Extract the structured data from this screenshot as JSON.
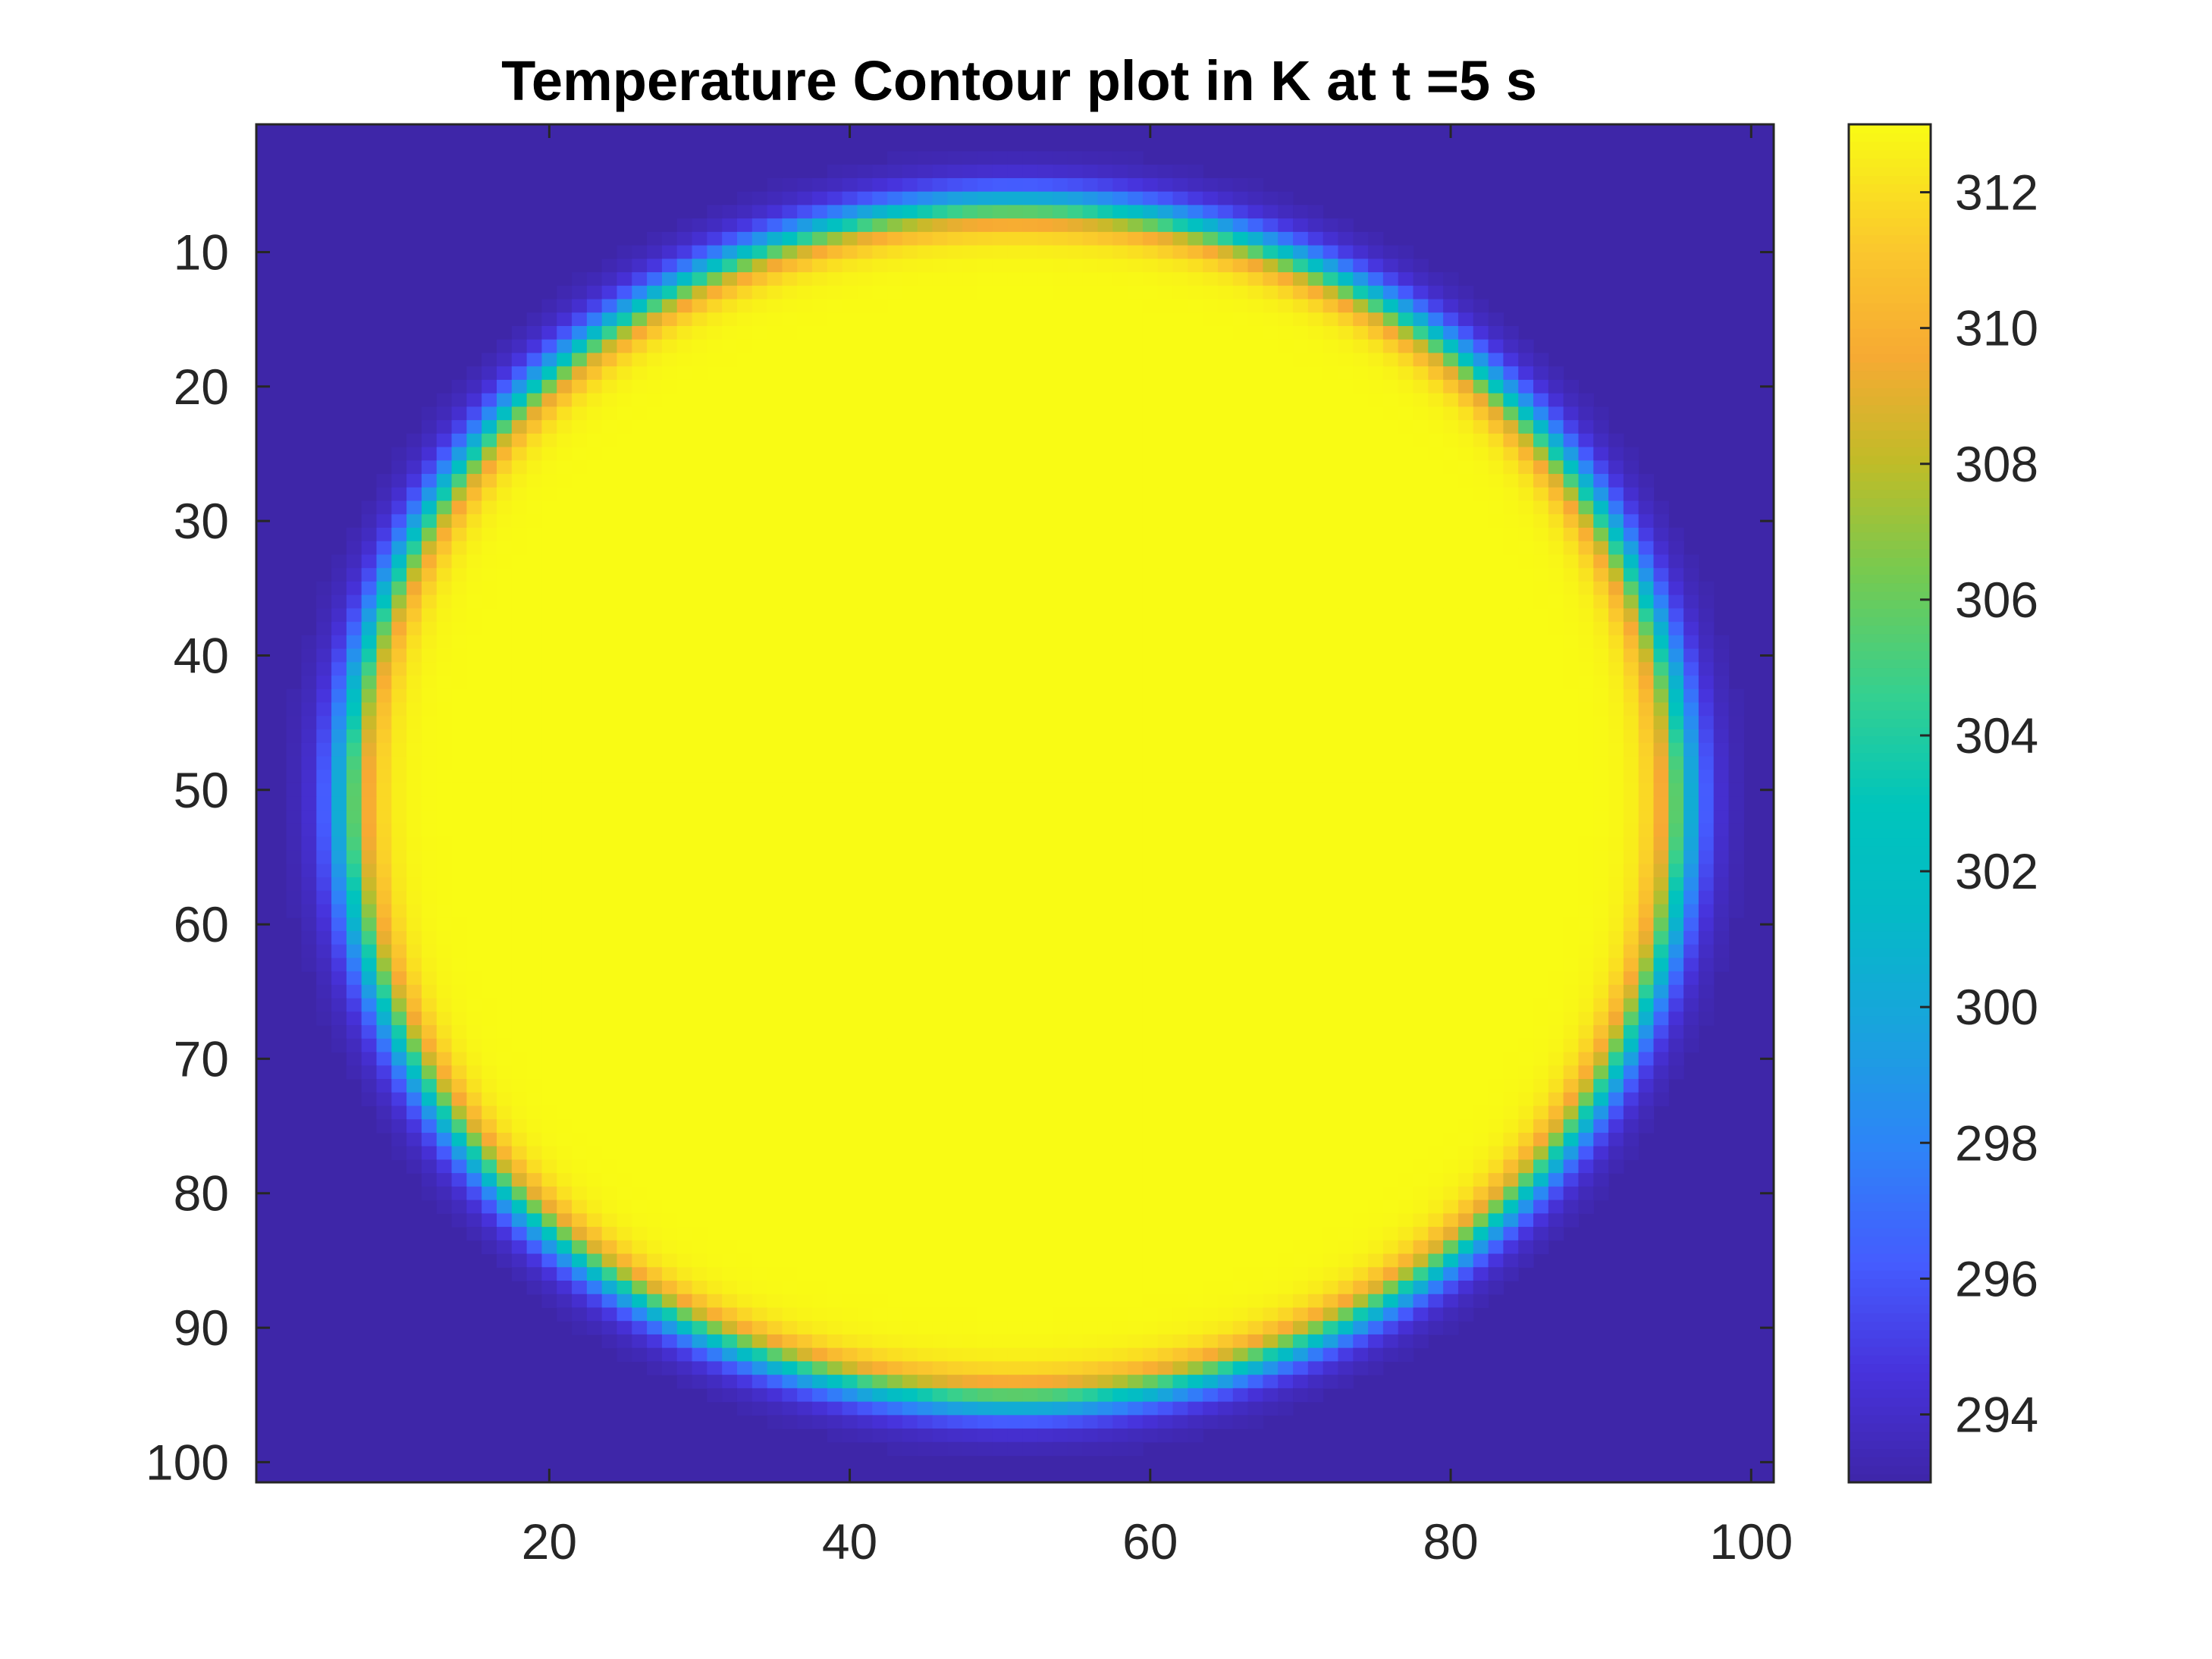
{
  "chart_data": {
    "type": "heatmap",
    "title": "Temperature Contour plot in K at t =5 s",
    "xlabel": "",
    "ylabel": "",
    "grid_size": [
      101,
      101
    ],
    "xlim": [
      0.5,
      101.5
    ],
    "ylim": [
      0.5,
      101.5
    ],
    "y_direction": "reverse",
    "x_ticks": [
      20,
      40,
      60,
      80,
      100
    ],
    "y_ticks": [
      10,
      20,
      30,
      40,
      50,
      60,
      70,
      80,
      90,
      100
    ],
    "field": {
      "description_values": "hot circular disk in cold surroundings",
      "center_x": 51,
      "center_y": 51,
      "radius": 44.5,
      "hot_value": 313,
      "cold_value": 293,
      "edge_width": 2.2
    },
    "colorbar": {
      "clim": [
        293,
        313
      ],
      "ticks": [
        294,
        296,
        298,
        300,
        302,
        304,
        306,
        308,
        310,
        312
      ],
      "location": "right",
      "colormap": "parula"
    },
    "grid": false,
    "legend": "none"
  },
  "colors": {
    "axis": "#262626",
    "background": "#ffffff"
  }
}
